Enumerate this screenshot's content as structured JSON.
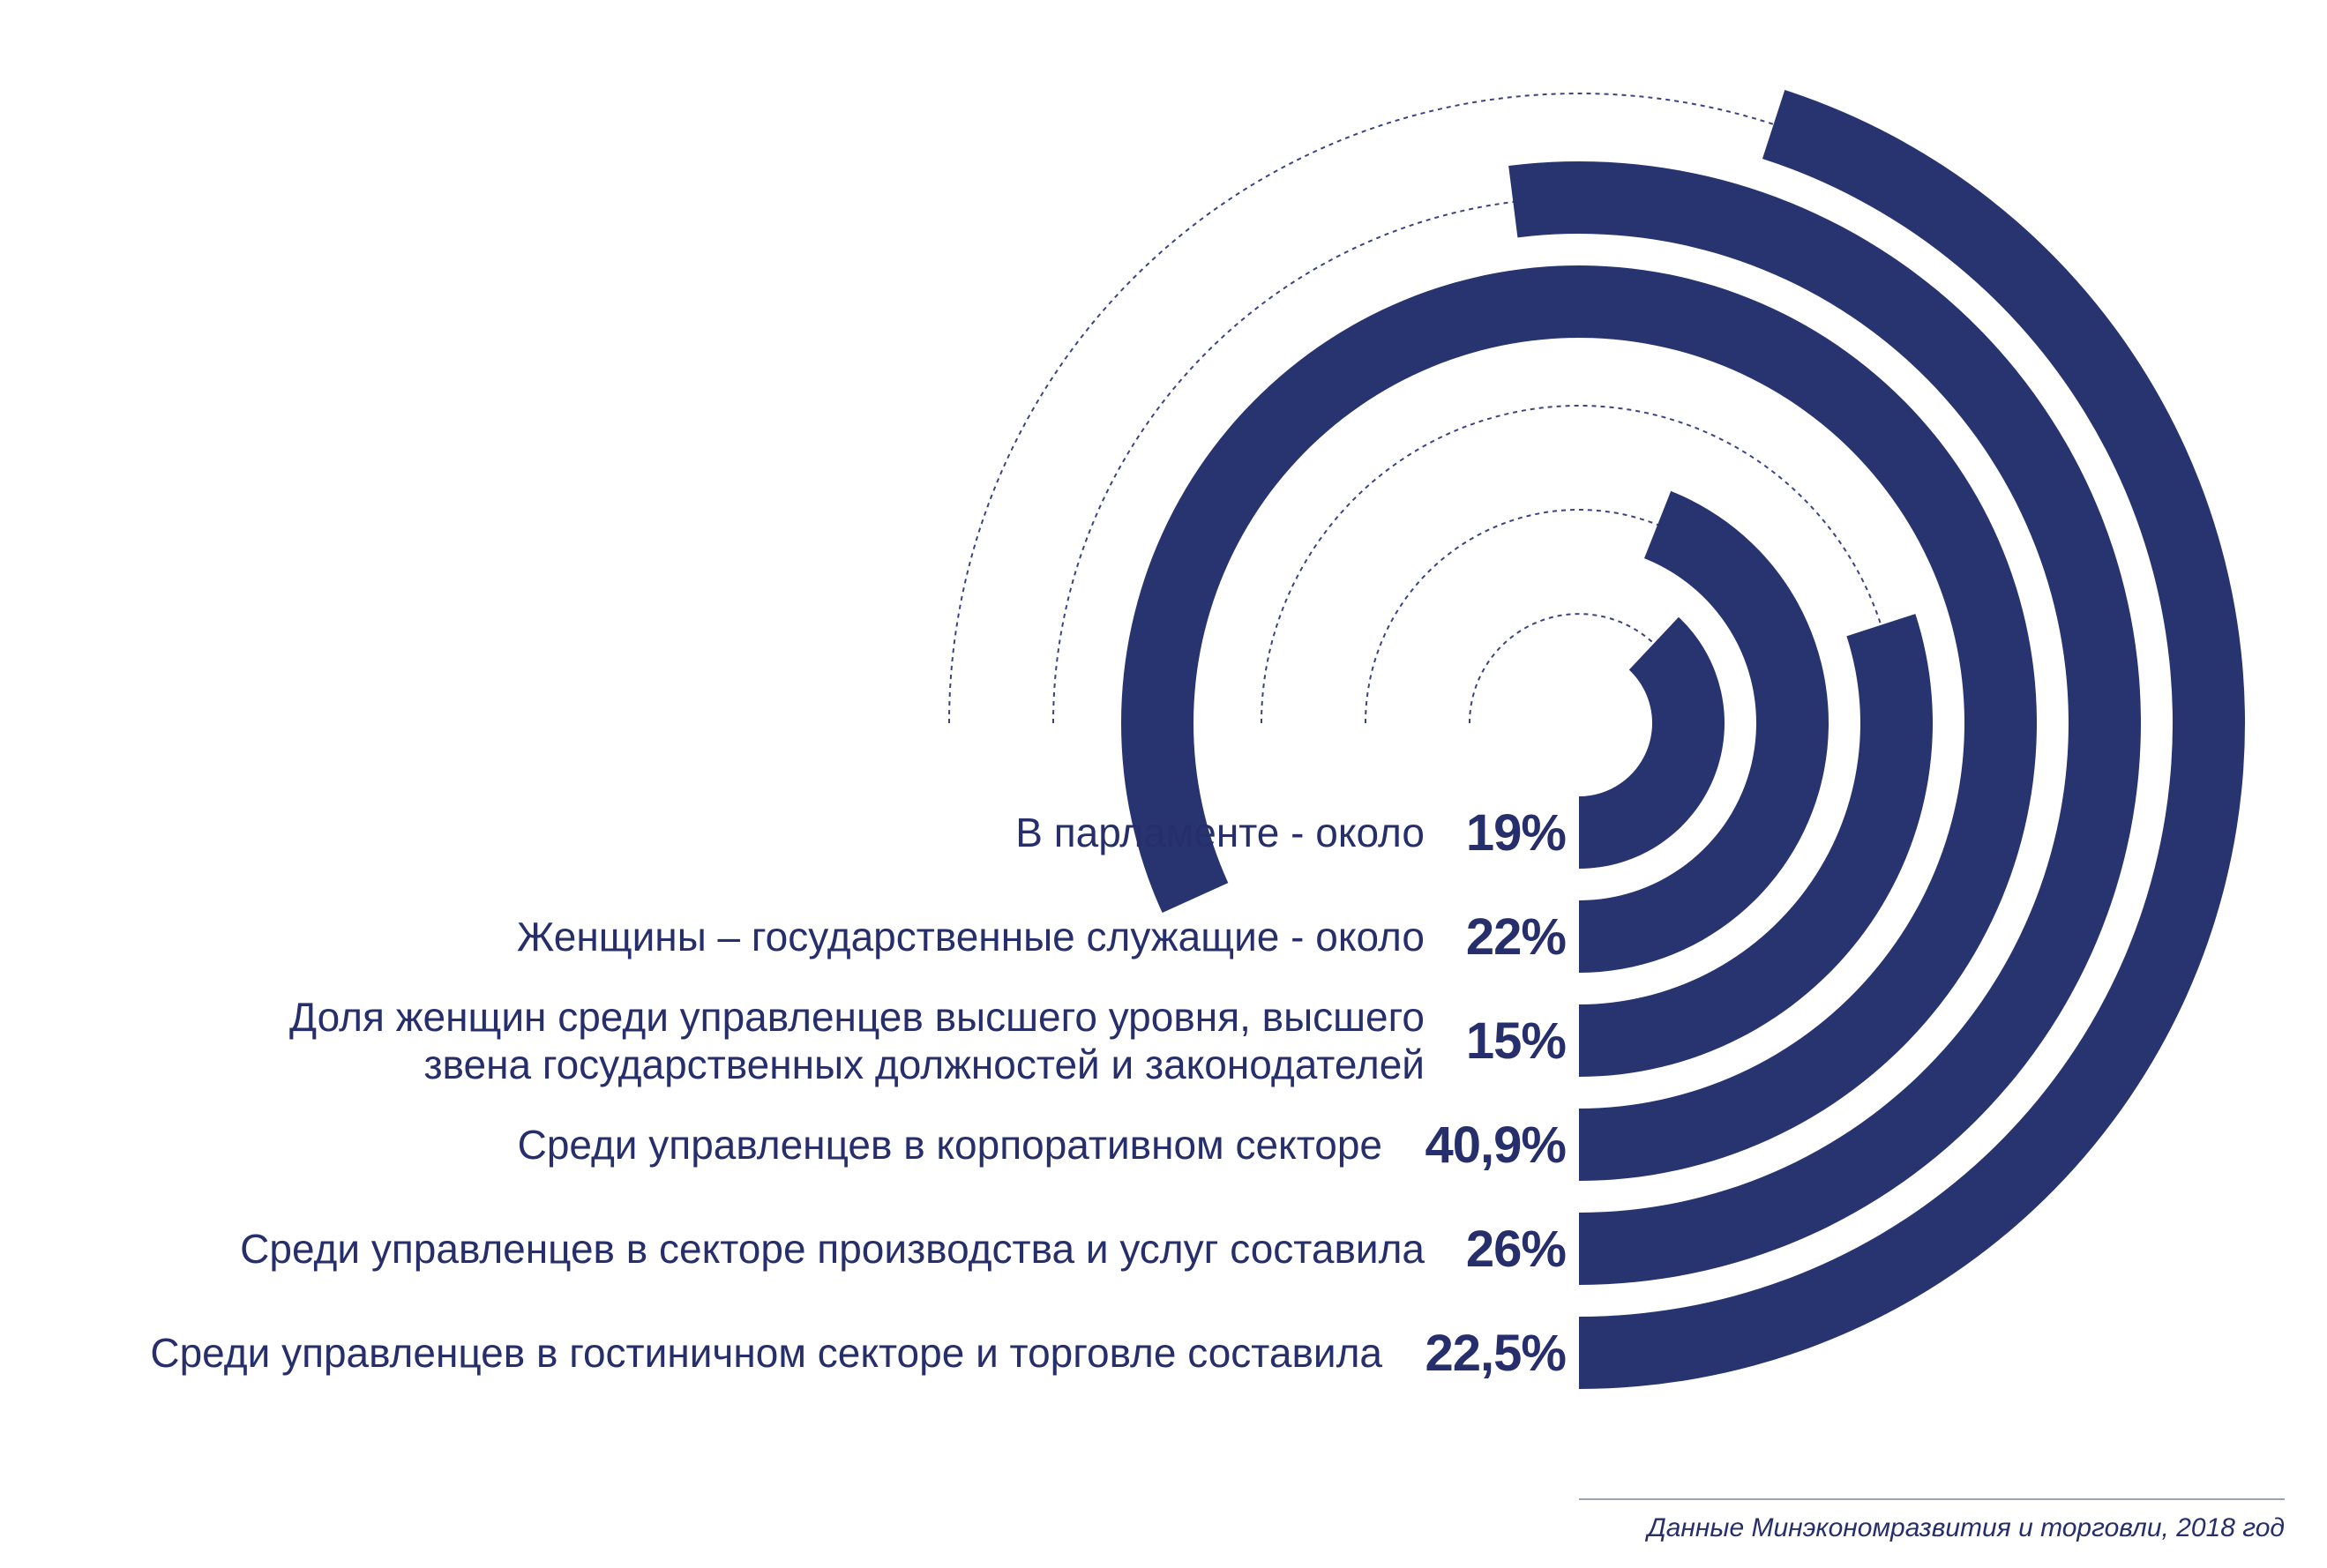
{
  "chart_data": {
    "type": "radial-bar",
    "items": [
      {
        "label_lines": [
          "В парламенте - около"
        ],
        "value": 19,
        "value_label": "19%"
      },
      {
        "label_lines": [
          "Женщины – государственные служащие - около"
        ],
        "value": 22,
        "value_label": "22%"
      },
      {
        "label_lines": [
          "Доля женщин среди управленцев высшего уровня, высшего",
          "звена государственных должностей и законодателей"
        ],
        "value": 15,
        "value_label": "15%"
      },
      {
        "label_lines": [
          "Среди управленцев в корпоративном секторе"
        ],
        "value": 40.9,
        "value_label": "40,9%"
      },
      {
        "label_lines": [
          "Среди управленцев в секторе производства и услуг составила"
        ],
        "value": 26,
        "value_label": "26%"
      },
      {
        "label_lines": [
          "Среди управленцев в гостиничном секторе и торговле составила"
        ],
        "value": 22.5,
        "value_label": "22,5%"
      }
    ],
    "source": "Данные Минэкономразвития и торговли, 2018 год",
    "colors": {
      "bar": "#28346f",
      "text": "#262f6b",
      "guide": "#3a4480",
      "rule": "#9aa0b8"
    }
  }
}
